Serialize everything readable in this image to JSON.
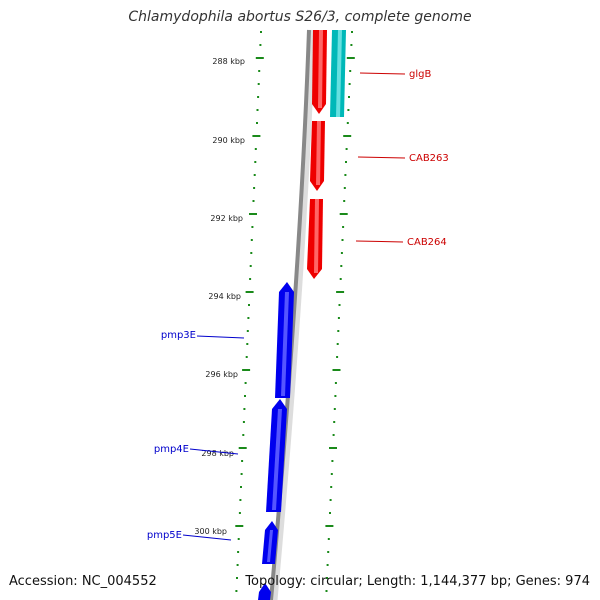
{
  "title": "Chlamydophila abortus S26/3, complete genome",
  "footer": {
    "accession": "Accession: NC_004552",
    "summary": "Topology: circular; Length: 1,144,377 bp; Genes: 974"
  },
  "colors": {
    "forward_gene": "#ee0000",
    "reverse_gene": "#0000ee",
    "rna_feature": "#00b8b8",
    "backbone": "#888888",
    "ticks": "#1a8a1a",
    "forward_label": "#cc0000",
    "reverse_label": "#0000cc"
  },
  "scale_labels": [
    "288 kbp",
    "290 kbp",
    "292 kbp",
    "294 kbp",
    "296 kbp",
    "298 kbp",
    "300 kbp"
  ],
  "gene_labels": [
    {
      "text": "glgB",
      "strand": "forward"
    },
    {
      "text": "CAB263",
      "strand": "forward"
    },
    {
      "text": "CAB264",
      "strand": "forward"
    },
    {
      "text": "pmp3E",
      "strand": "reverse"
    },
    {
      "text": "pmp4E",
      "strand": "reverse"
    },
    {
      "text": "pmp5E",
      "strand": "reverse"
    }
  ]
}
